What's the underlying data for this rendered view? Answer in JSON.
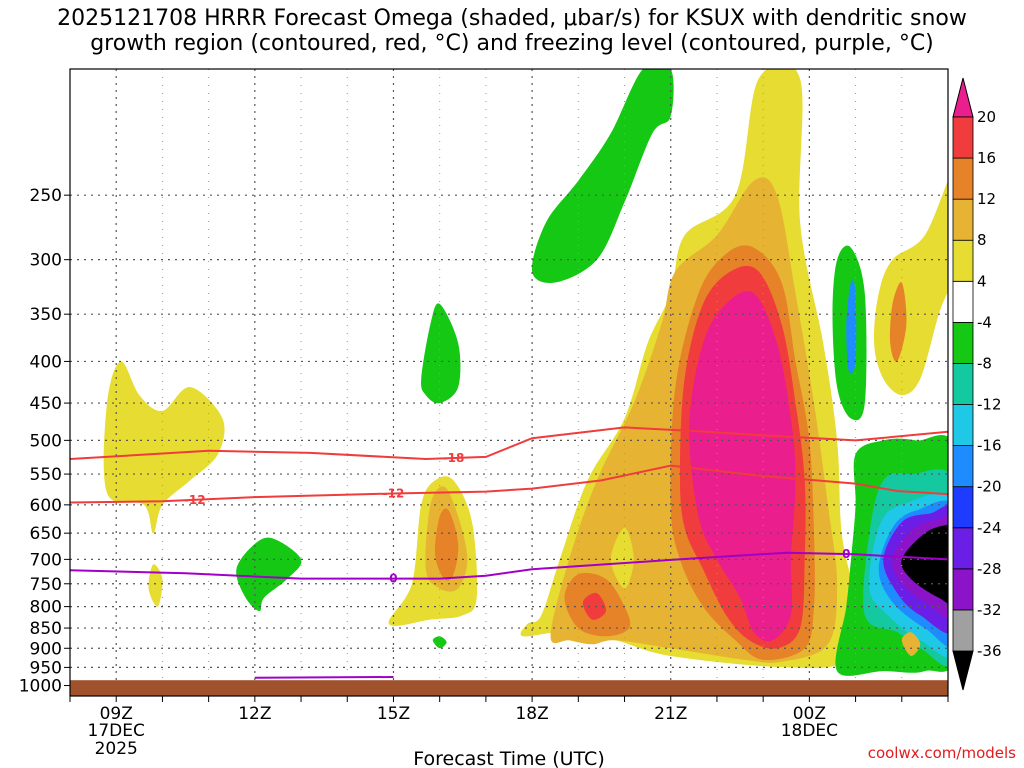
{
  "title": {
    "line1": "2025121708 HRRR Forecast Omega (shaded, μbar/s) for KSUX with dendritic snow",
    "line2": "growth region (contoured, red, °C) and freezing level (contoured, purple, °C)"
  },
  "credit": "coolwx.com/models",
  "chart_data": {
    "type": "heatmap",
    "title": "2025121708 HRRR Forecast Omega (shaded, μbar/s) for KSUX with dendritic snow growth region (contoured, red, °C) and freezing level (contoured, purple, °C)",
    "xlabel": "Forecast Time (UTC)",
    "ylabel": "",
    "xlim_hours": [
      8,
      27
    ],
    "ylim_mb": [
      1030,
      175
    ],
    "y_scale": "log-pressure",
    "grid": true,
    "x_ticks": [
      {
        "hour": 9,
        "label": "09Z",
        "sub1": "17DEC",
        "sub2": "2025"
      },
      {
        "hour": 12,
        "label": "12Z",
        "sub1": "",
        "sub2": ""
      },
      {
        "hour": 15,
        "label": "15Z",
        "sub1": "",
        "sub2": ""
      },
      {
        "hour": 18,
        "label": "18Z",
        "sub1": "",
        "sub2": ""
      },
      {
        "hour": 21,
        "label": "21Z",
        "sub1": "",
        "sub2": ""
      },
      {
        "hour": 24,
        "label": "00Z",
        "sub1": "18DEC",
        "sub2": ""
      }
    ],
    "y_ticks": [
      250,
      300,
      350,
      400,
      450,
      500,
      550,
      600,
      650,
      700,
      750,
      800,
      850,
      900,
      950,
      1000
    ],
    "colorbar": {
      "levels": [
        -36,
        -32,
        -28,
        -24,
        -20,
        -16,
        -12,
        -8,
        -4,
        4,
        8,
        12,
        16,
        20
      ],
      "colors": [
        "#000000",
        "#a0a0a0",
        "#8c14c8",
        "#6a1ee6",
        "#1e3cff",
        "#1e8cff",
        "#1ec8e6",
        "#14c8a0",
        "#14c814",
        "#ffffff",
        "#e6dc32",
        "#e6b432",
        "#e68228",
        "#f03c3c",
        "#ea1e8c"
      ]
    },
    "terrain_color": "#a0522d",
    "omega_regions": [
      {
        "name": "ascent-core",
        "level": 20,
        "color": "#ea1e8c",
        "x_hour": 22.3,
        "p_mb": 480,
        "note": "omega ≥ 20 μbar/s, 21Z–23Z, 350–850 mb"
      },
      {
        "name": "ascent-16",
        "level": 16,
        "color": "#f03c3c",
        "x_hour": 22.3,
        "p_mb": 480
      },
      {
        "name": "ascent-12",
        "level": 12,
        "color": "#e68228",
        "x_hour": 22.3,
        "p_mb": 480
      },
      {
        "name": "ascent-8",
        "level": 8,
        "color": "#e6b432",
        "x_hour": 22.3,
        "p_mb": 480
      },
      {
        "name": "ascent-4",
        "level": 4,
        "color": "#e6dc32",
        "x_hour": 22.3,
        "p_mb": 480
      },
      {
        "name": "descent-black",
        "level": -36,
        "color": "#000000",
        "x_hour": 26.8,
        "p_mb": 700
      }
    ],
    "series": [
      {
        "name": "-18",
        "color": "#f03c3c",
        "points": [
          [
            8,
            527
          ],
          [
            11,
            515
          ],
          [
            13.2,
            518
          ],
          [
            15.7,
            527
          ],
          [
            17,
            524
          ],
          [
            18,
            497
          ],
          [
            20,
            482
          ],
          [
            21.5,
            487
          ],
          [
            23,
            493
          ],
          [
            25,
            500
          ],
          [
            27,
            488
          ]
        ]
      },
      {
        "name": "-12",
        "color": "#f03c3c",
        "points": [
          [
            8,
            596
          ],
          [
            10,
            594
          ],
          [
            12,
            587
          ],
          [
            15,
            581
          ],
          [
            17,
            578
          ],
          [
            18,
            573
          ],
          [
            19.5,
            560
          ],
          [
            21,
            537
          ],
          [
            23,
            553
          ],
          [
            25,
            565
          ],
          [
            25.9,
            577
          ],
          [
            27,
            582
          ]
        ]
      },
      {
        "name": "0",
        "color": "#a000c8",
        "points": [
          [
            8,
            722
          ],
          [
            10.5,
            728
          ],
          [
            13,
            739
          ],
          [
            15,
            739
          ],
          [
            16,
            739
          ],
          [
            17,
            733
          ],
          [
            18,
            720
          ],
          [
            21,
            701
          ],
          [
            23.5,
            687
          ],
          [
            25,
            690
          ],
          [
            27,
            700
          ]
        ]
      }
    ]
  }
}
